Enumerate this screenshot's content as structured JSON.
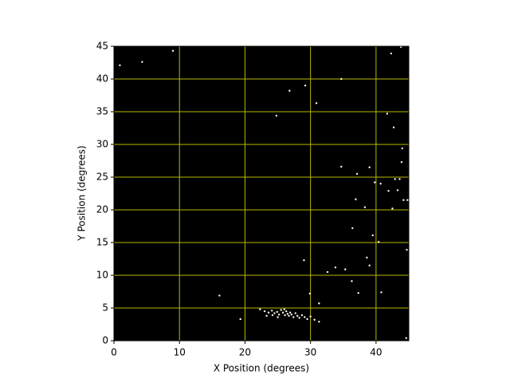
{
  "chart_data": {
    "type": "scatter",
    "xlabel": "X Position (degrees)",
    "ylabel": "Y Position (degrees)",
    "xlim": [
      0,
      45
    ],
    "ylim": [
      0,
      45
    ],
    "xticks": [
      0,
      10,
      20,
      30,
      40
    ],
    "yticks": [
      0,
      5,
      10,
      15,
      20,
      25,
      30,
      35,
      40,
      45
    ],
    "grid": true,
    "grid_color": "#b8b800",
    "background": "#000000",
    "series": [
      {
        "color": "#fff8e8",
        "x": [
          34.7,
          16.1,
          19.3,
          26.8,
          29.2,
          30.9,
          34.7,
          42.9,
          43.6,
          44.2,
          44.8,
          42.5,
          36.9,
          36.4,
          38.3,
          40.4,
          44.7,
          33.8,
          35.3,
          36.3,
          38.6,
          39.0,
          32.6,
          29.9,
          29.0,
          31.3,
          37.3,
          40.8,
          41.7,
          42.7,
          39.8,
          40.7,
          41.9,
          43.3,
          43.9,
          44.0,
          42.3,
          43.8,
          44.6,
          0.9,
          4.3,
          9.0,
          24.8,
          37.1,
          39.0,
          39.5,
          22.3,
          23.0,
          23.6,
          24.1,
          24.5,
          24.9,
          25.2,
          25.5,
          25.8,
          26.1,
          26.3,
          26.5,
          26.7,
          26.9,
          27.1,
          27.4,
          27.7,
          28.0,
          28.3,
          28.7,
          29.1,
          29.5,
          30.0,
          30.6,
          31.3,
          25.0,
          24.2,
          26.0,
          23.3
        ],
        "values": [
          40.0,
          6.9,
          3.3,
          38.2,
          39.0,
          36.3,
          26.6,
          24.7,
          24.7,
          21.5,
          21.5,
          20.2,
          21.6,
          17.2,
          20.4,
          15.1,
          13.9,
          11.2,
          10.9,
          9.1,
          12.7,
          11.5,
          10.5,
          7.2,
          12.3,
          5.7,
          7.3,
          7.4,
          34.7,
          32.6,
          24.2,
          24.0,
          22.9,
          23.0,
          27.3,
          29.4,
          43.9,
          44.9,
          0.4,
          42.1,
          42.6,
          44.3,
          34.4,
          25.5,
          26.5,
          16.1,
          4.8,
          4.5,
          4.3,
          4.6,
          4.2,
          4.4,
          4.0,
          4.7,
          4.3,
          3.9,
          4.5,
          4.1,
          3.8,
          4.3,
          4.0,
          3.6,
          4.2,
          3.8,
          3.5,
          3.9,
          3.6,
          3.3,
          3.7,
          3.2,
          2.9,
          3.6,
          3.9,
          4.8,
          3.8
        ]
      }
    ]
  }
}
